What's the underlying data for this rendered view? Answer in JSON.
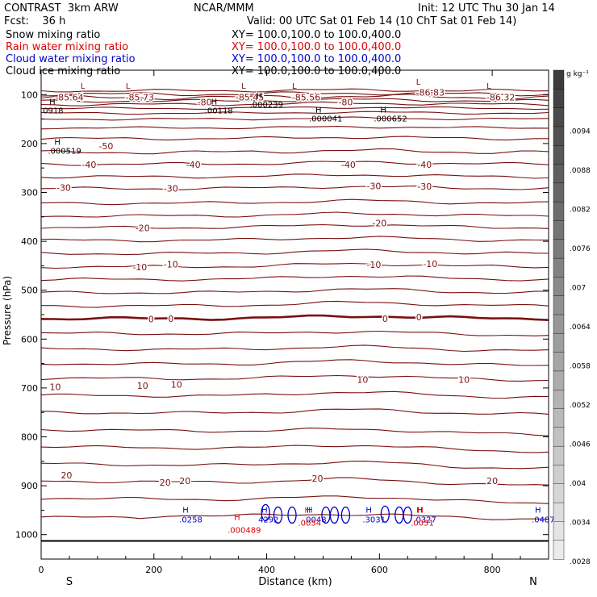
{
  "header": {
    "title": "CONTRAST  3km ARW",
    "center": "NCAR/MMM",
    "init": "Init: 12 UTC Thu 30 Jan 14",
    "fcst": "Fcst:    36 h",
    "valid": "Valid: 00 UTC Sat 01 Feb 14 (10 ChT Sat 01 Feb 14)"
  },
  "legend": [
    {
      "label": "Snow mixing ratio",
      "xy": "XY= 100.0,100.0 to 100.0,400.0",
      "color": "#000000"
    },
    {
      "label": "Rain water mixing ratio",
      "xy": "XY= 100.0,100.0 to 100.0,400.0",
      "color": "#dd0000"
    },
    {
      "label": "Cloud water mixing ratio",
      "xy": "XY= 100.0,100.0 to 100.0,400.0",
      "color": "#0000cc"
    },
    {
      "label": "Cloud ice mixing ratio",
      "xy": "XY= 100.0,100.0 to 100.0,400.0",
      "color": "#000000"
    }
  ],
  "colors": {
    "temp": "#7a1010",
    "axis": "#000000",
    "rain": "#dd0000",
    "cloud": "#0000cc"
  },
  "chart_data": {
    "type": "contour",
    "xlabel": "Distance (km)",
    "ylabel": "Pressure (hPa)",
    "xlim": [
      0,
      900
    ],
    "ylim": [
      1050,
      50
    ],
    "xticks": [
      0,
      200,
      400,
      600,
      800
    ],
    "yticks": [
      100,
      200,
      300,
      400,
      500,
      600,
      700,
      800,
      900,
      1000
    ],
    "x_end_labels": {
      "left": "S",
      "right": "N"
    },
    "colorbar": {
      "unit": "g kg⁻¹",
      "labels": [
        ".0094",
        ".0088",
        ".0082",
        ".0076",
        ".007",
        ".0064",
        ".0058",
        ".0052",
        ".0046",
        ".004",
        ".0034",
        ".0028"
      ]
    },
    "temperature_contour_labels": [
      {
        "x": 50,
        "p": 105,
        "text": "-85.64"
      },
      {
        "x": 175,
        "p": 105,
        "text": "-85.73"
      },
      {
        "x": 370,
        "p": 105,
        "text": "-85.45"
      },
      {
        "x": 470,
        "p": 105,
        "text": "-85.56"
      },
      {
        "x": 690,
        "p": 95,
        "text": "-86.83"
      },
      {
        "x": 815,
        "p": 105,
        "text": "-86.32"
      },
      {
        "x": 290,
        "p": 115,
        "text": "-80"
      },
      {
        "x": 540,
        "p": 115,
        "text": "-80"
      },
      {
        "x": 115,
        "p": 205,
        "text": "-50"
      },
      {
        "x": 85,
        "p": 243,
        "text": "-40"
      },
      {
        "x": 270,
        "p": 243,
        "text": "-40"
      },
      {
        "x": 545,
        "p": 243,
        "text": "-40"
      },
      {
        "x": 680,
        "p": 243,
        "text": "-40"
      },
      {
        "x": 40,
        "p": 290,
        "text": "-30"
      },
      {
        "x": 230,
        "p": 292,
        "text": "-30"
      },
      {
        "x": 590,
        "p": 287,
        "text": "-30"
      },
      {
        "x": 680,
        "p": 288,
        "text": "-30"
      },
      {
        "x": 180,
        "p": 373,
        "text": "-20"
      },
      {
        "x": 600,
        "p": 363,
        "text": "-20"
      },
      {
        "x": 175,
        "p": 453,
        "text": "-10"
      },
      {
        "x": 230,
        "p": 447,
        "text": "-10"
      },
      {
        "x": 590,
        "p": 448,
        "text": "-10"
      },
      {
        "x": 690,
        "p": 446,
        "text": "-10"
      },
      {
        "x": 195,
        "p": 559,
        "text": "0"
      },
      {
        "x": 230,
        "p": 558,
        "text": "0"
      },
      {
        "x": 610,
        "p": 558,
        "text": "0"
      },
      {
        "x": 670,
        "p": 555,
        "text": "0"
      },
      {
        "x": 25,
        "p": 698,
        "text": "10"
      },
      {
        "x": 180,
        "p": 695,
        "text": "10"
      },
      {
        "x": 240,
        "p": 693,
        "text": "10"
      },
      {
        "x": 570,
        "p": 683,
        "text": "10"
      },
      {
        "x": 750,
        "p": 683,
        "text": "10"
      },
      {
        "x": 45,
        "p": 878,
        "text": "20"
      },
      {
        "x": 220,
        "p": 893,
        "text": "20"
      },
      {
        "x": 255,
        "p": 890,
        "text": "20"
      },
      {
        "x": 490,
        "p": 885,
        "text": "20"
      },
      {
        "x": 800,
        "p": 890,
        "text": "20"
      }
    ],
    "extrema": [
      {
        "type": "L",
        "x": 70,
        "p": 88,
        "value": ""
      },
      {
        "type": "L",
        "x": 150,
        "p": 88,
        "value": ""
      },
      {
        "type": "L",
        "x": 355,
        "p": 88,
        "value": ""
      },
      {
        "type": "L",
        "x": 445,
        "p": 88,
        "value": ""
      },
      {
        "type": "L",
        "x": 665,
        "p": 80,
        "value": ""
      },
      {
        "type": "L",
        "x": 790,
        "p": 88,
        "value": ""
      },
      {
        "type": "H",
        "x": 3,
        "p": 120,
        "value": "0918"
      },
      {
        "type": "H",
        "x": 290,
        "p": 120,
        "value": ".00118"
      },
      {
        "type": "H",
        "x": 370,
        "p": 108,
        "value": ".000239"
      },
      {
        "type": "H",
        "x": 475,
        "p": 137,
        "value": ".000041"
      },
      {
        "type": "H",
        "x": 590,
        "p": 137,
        "value": ".000652"
      },
      {
        "type": "H",
        "x": 12,
        "p": 203,
        "value": ".000519"
      }
    ],
    "cloud_water_maxima": [
      {
        "x": 245,
        "p": 975,
        "value": ".0258"
      },
      {
        "x": 385,
        "p": 975,
        "value": "4292"
      },
      {
        "x": 465,
        "p": 975,
        "value": ".0048"
      },
      {
        "x": 570,
        "p": 975,
        "value": ".3031"
      },
      {
        "x": 660,
        "p": 975,
        "value": ".0327"
      },
      {
        "x": 870,
        "p": 975,
        "value": ".0487"
      }
    ],
    "rain_water_maxima": [
      {
        "x": 345,
        "p": 990,
        "value": ".000489"
      },
      {
        "x": 470,
        "p": 975,
        "value": ".0054"
      },
      {
        "x": 670,
        "p": 975,
        "value": ".0051"
      }
    ]
  }
}
